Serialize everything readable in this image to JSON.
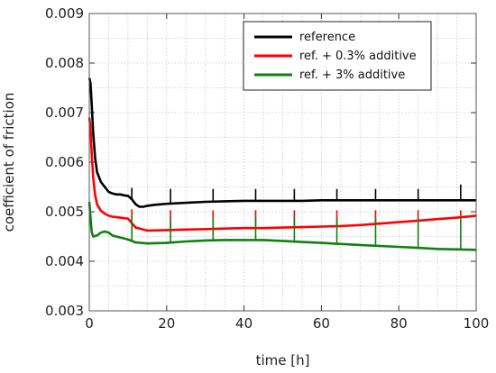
{
  "chart_data": {
    "type": "line",
    "xlabel": "time [h]",
    "ylabel": "coefficient of friction",
    "xlim": [
      0,
      100
    ],
    "ylim": [
      0.003,
      0.009
    ],
    "xticks": [
      0,
      20,
      40,
      60,
      80,
      100
    ],
    "xtick_labels": [
      "0",
      "20",
      "40",
      "60",
      "80",
      "100"
    ],
    "yticks": [
      0.003,
      0.004,
      0.005,
      0.006,
      0.007,
      0.008,
      0.009
    ],
    "ytick_labels": [
      "0.003",
      "0.004",
      "0.005",
      "0.006",
      "0.007",
      "0.008",
      "0.009"
    ],
    "grid": true,
    "legend_position": "top-right",
    "series": [
      {
        "name": "reference",
        "color": "#000000",
        "x": [
          0,
          0.3,
          0.6,
          1,
          1.5,
          2,
          3,
          4,
          5,
          6,
          7,
          8,
          9,
          10,
          11,
          12,
          13,
          14,
          15,
          17,
          20,
          25,
          30,
          35,
          40,
          45,
          50,
          55,
          60,
          65,
          70,
          75,
          80,
          85,
          90,
          95,
          100
        ],
        "y": [
          0.0077,
          0.0076,
          0.0072,
          0.0066,
          0.0061,
          0.0058,
          0.0056,
          0.0055,
          0.0054,
          0.00537,
          0.00535,
          0.00535,
          0.00533,
          0.00532,
          0.00525,
          0.00515,
          0.0051,
          0.0051,
          0.00512,
          0.00514,
          0.00516,
          0.00518,
          0.0052,
          0.00521,
          0.00522,
          0.00522,
          0.00522,
          0.00522,
          0.00523,
          0.00523,
          0.00523,
          0.00523,
          0.00523,
          0.00523,
          0.00523,
          0.00523,
          0.00523
        ],
        "spikes": {
          "x": [
            11,
            21,
            32,
            43,
            53,
            64,
            74,
            85,
            96
          ],
          "peak": [
            0.00548,
            0.00546,
            0.00546,
            0.00546,
            0.00546,
            0.00546,
            0.00546,
            0.00546,
            0.00555
          ]
        }
      },
      {
        "name": "ref. + 0.3% additive",
        "color": "#ff0000",
        "x": [
          0,
          0.3,
          0.6,
          1,
          1.5,
          2,
          3,
          4,
          5,
          6,
          8,
          10,
          12,
          15,
          20,
          25,
          30,
          35,
          40,
          45,
          50,
          55,
          60,
          65,
          70,
          75,
          80,
          85,
          90,
          95,
          100
        ],
        "y": [
          0.0069,
          0.0067,
          0.0062,
          0.0057,
          0.00535,
          0.00515,
          0.00502,
          0.00496,
          0.00492,
          0.0049,
          0.00488,
          0.00486,
          0.00468,
          0.00462,
          0.00463,
          0.00464,
          0.00465,
          0.00466,
          0.00467,
          0.00467,
          0.00468,
          0.00469,
          0.0047,
          0.00471,
          0.00473,
          0.00476,
          0.00479,
          0.00482,
          0.00485,
          0.00488,
          0.00492
        ],
        "spikes": {
          "x": [
            11,
            21,
            32,
            43,
            53,
            64,
            74,
            85,
            96
          ],
          "peak": [
            0.00505,
            0.00503,
            0.00503,
            0.00503,
            0.00503,
            0.00503,
            0.00503,
            0.00503,
            0.00503
          ]
        }
      },
      {
        "name": "ref. + 3% additive",
        "color": "#108010",
        "x": [
          0,
          0.3,
          0.6,
          1,
          2,
          3,
          4,
          5,
          6,
          8,
          10,
          12,
          15,
          20,
          25,
          30,
          35,
          40,
          45,
          50,
          55,
          60,
          65,
          70,
          75,
          80,
          85,
          90,
          95,
          100
        ],
        "y": [
          0.0052,
          0.0049,
          0.0046,
          0.0045,
          0.00452,
          0.00458,
          0.0046,
          0.00458,
          0.00452,
          0.00448,
          0.00444,
          0.00438,
          0.00436,
          0.00437,
          0.0044,
          0.00442,
          0.00443,
          0.00443,
          0.00443,
          0.00441,
          0.00439,
          0.00437,
          0.00435,
          0.00433,
          0.00431,
          0.00429,
          0.00427,
          0.00425,
          0.00424,
          0.00423
        ],
        "spikes": {
          "x": [
            11,
            21,
            32,
            43,
            53,
            64,
            74,
            85,
            96
          ],
          "peak": [
            0.00493,
            0.00488,
            0.00488,
            0.00488,
            0.00488,
            0.00488,
            0.00488,
            0.00488,
            0.00488
          ]
        }
      }
    ]
  }
}
